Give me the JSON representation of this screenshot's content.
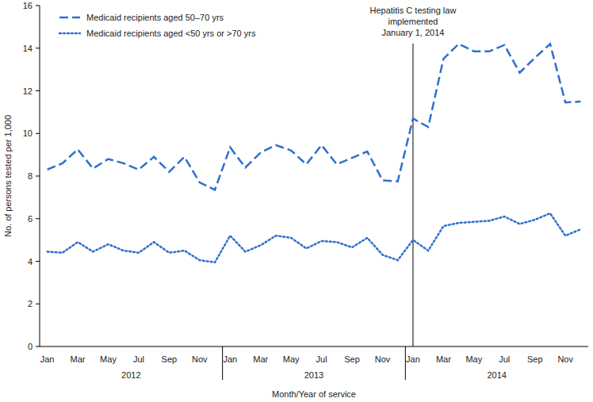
{
  "chart_data": {
    "type": "line",
    "x_label": "Month/Year of service",
    "y_label": "No. of persons tested per 1,000",
    "categories": [
      "Jan",
      null,
      "Mar",
      null,
      "May",
      null,
      "Jul",
      null,
      "Sep",
      null,
      "Nov",
      null,
      "Jan",
      null,
      "Mar",
      null,
      "May",
      null,
      "Jul",
      null,
      "Sep",
      null,
      "Nov",
      null,
      "Jan",
      null,
      "Mar",
      null,
      "May",
      null,
      "Jul",
      null,
      "Sep",
      null,
      "Nov",
      null
    ],
    "year_labels": [
      "2012",
      "2013",
      "2014"
    ],
    "series": [
      {
        "name": "Medicaid recipients aged 50–70 yrs",
        "color": "#2f6fce",
        "line_style": "dashed",
        "values": [
          8.3,
          8.6,
          9.25,
          8.35,
          8.8,
          8.6,
          8.3,
          8.9,
          8.2,
          8.9,
          7.7,
          7.35,
          9.35,
          8.4,
          9.1,
          9.45,
          9.2,
          8.55,
          9.45,
          8.55,
          8.85,
          9.15,
          7.8,
          7.75,
          10.7,
          10.3,
          13.5,
          14.2,
          13.85,
          13.85,
          14.15,
          12.85,
          13.55,
          14.2,
          11.45,
          11.5
        ]
      },
      {
        "name": "Medicaid recipients aged <50 yrs or >70 yrs",
        "color": "#2f6fce",
        "line_style": "dotted",
        "values": [
          4.45,
          4.4,
          4.9,
          4.45,
          4.8,
          4.5,
          4.4,
          4.9,
          4.4,
          4.5,
          4.05,
          3.95,
          5.2,
          4.45,
          4.75,
          5.2,
          5.1,
          4.6,
          4.95,
          4.9,
          4.65,
          5.1,
          4.3,
          4.05,
          5.0,
          4.5,
          5.65,
          5.8,
          5.85,
          5.9,
          6.1,
          5.75,
          5.95,
          6.25,
          5.2,
          5.5
        ]
      }
    ],
    "annotations": [
      {
        "lines": [
          "Hepatitis C testing law",
          "implemented",
          "January 1, 2014"
        ],
        "index": 24
      }
    ],
    "ylim": [
      0,
      16
    ],
    "yticks": [
      0,
      2,
      4,
      6,
      8,
      10,
      12,
      14,
      16
    ],
    "grid": false,
    "legend": "top-left"
  }
}
